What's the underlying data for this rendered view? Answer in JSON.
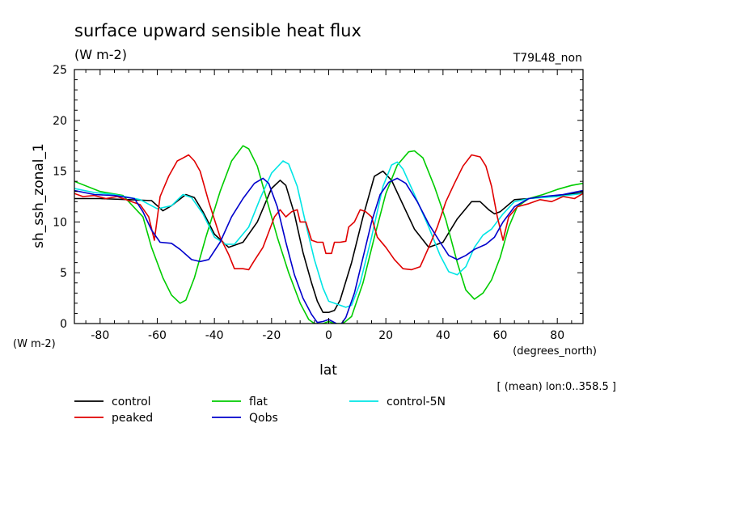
{
  "chart_data": {
    "type": "line",
    "title": "surface upward sensible heat flux",
    "subtitle": "(W m-2)",
    "run_label": "T79L48_non",
    "ylabel": "sh_ssh_zonal_1",
    "yunits": "(W m-2)",
    "xlabel": "lat",
    "xunits": "(degrees_north)",
    "annotation": "[ (mean) lon:0..358.5 ]",
    "xlim": [
      -89,
      89
    ],
    "ylim": [
      0,
      25
    ],
    "xticks": [
      -80,
      -60,
      -40,
      -20,
      0,
      20,
      40,
      60,
      80
    ],
    "yticks": [
      0,
      5,
      10,
      15,
      20,
      25
    ],
    "grid": false,
    "legend_position": "bottom",
    "series": [
      {
        "name": "control",
        "color": "#000000",
        "points": [
          [
            -89,
            12.3
          ],
          [
            -80,
            12.3
          ],
          [
            -70,
            12.2
          ],
          [
            -62,
            12.1
          ],
          [
            -58,
            11.1
          ],
          [
            -55,
            11.6
          ],
          [
            -50,
            12.7
          ],
          [
            -47,
            12.4
          ],
          [
            -44,
            11.0
          ],
          [
            -40,
            8.8
          ],
          [
            -35,
            7.5
          ],
          [
            -30,
            8.0
          ],
          [
            -25,
            10.0
          ],
          [
            -20,
            13.3
          ],
          [
            -17,
            14.1
          ],
          [
            -15,
            13.6
          ],
          [
            -12,
            10.8
          ],
          [
            -9,
            7.0
          ],
          [
            -6,
            4.0
          ],
          [
            -4,
            2.2
          ],
          [
            -2,
            1.1
          ],
          [
            0,
            1.1
          ],
          [
            2,
            1.3
          ],
          [
            4,
            2.3
          ],
          [
            8,
            6.0
          ],
          [
            12,
            10.5
          ],
          [
            16,
            14.5
          ],
          [
            19,
            15.0
          ],
          [
            22,
            14.1
          ],
          [
            25,
            12.3
          ],
          [
            30,
            9.3
          ],
          [
            35,
            7.5
          ],
          [
            40,
            8.0
          ],
          [
            45,
            10.3
          ],
          [
            50,
            12.0
          ],
          [
            53,
            12.0
          ],
          [
            56,
            11.2
          ],
          [
            58,
            10.8
          ],
          [
            60,
            11.0
          ],
          [
            65,
            12.2
          ],
          [
            70,
            12.3
          ],
          [
            80,
            12.6
          ],
          [
            89,
            12.9
          ]
        ]
      },
      {
        "name": "flat",
        "color": "#00cc00",
        "points": [
          [
            -89,
            14.0
          ],
          [
            -80,
            13.0
          ],
          [
            -72,
            12.6
          ],
          [
            -65,
            10.5
          ],
          [
            -62,
            7.5
          ],
          [
            -58,
            4.5
          ],
          [
            -55,
            2.8
          ],
          [
            -52,
            2.0
          ],
          [
            -50,
            2.3
          ],
          [
            -47,
            4.5
          ],
          [
            -43,
            8.5
          ],
          [
            -38,
            13.0
          ],
          [
            -34,
            16.0
          ],
          [
            -30,
            17.5
          ],
          [
            -28,
            17.2
          ],
          [
            -25,
            15.5
          ],
          [
            -22,
            12.5
          ],
          [
            -18,
            8.5
          ],
          [
            -14,
            5.0
          ],
          [
            -10,
            2.0
          ],
          [
            -7,
            0.4
          ],
          [
            -5,
            0
          ],
          [
            -2,
            0
          ],
          [
            0,
            0.2
          ],
          [
            2,
            0
          ],
          [
            5,
            0
          ],
          [
            8,
            0.7
          ],
          [
            12,
            4.0
          ],
          [
            16,
            8.5
          ],
          [
            20,
            12.8
          ],
          [
            24,
            15.6
          ],
          [
            28,
            16.9
          ],
          [
            30,
            17.0
          ],
          [
            33,
            16.3
          ],
          [
            37,
            13.5
          ],
          [
            41,
            10.2
          ],
          [
            45,
            6.0
          ],
          [
            48,
            3.3
          ],
          [
            51,
            2.4
          ],
          [
            54,
            3.0
          ],
          [
            57,
            4.3
          ],
          [
            60,
            6.5
          ],
          [
            63,
            9.5
          ],
          [
            66,
            11.5
          ],
          [
            70,
            12.3
          ],
          [
            75,
            12.7
          ],
          [
            80,
            13.2
          ],
          [
            85,
            13.6
          ],
          [
            89,
            13.8
          ]
        ]
      },
      {
        "name": "control-5N",
        "color": "#00e5e5",
        "points": [
          [
            -89,
            13.3
          ],
          [
            -82,
            12.9
          ],
          [
            -75,
            12.7
          ],
          [
            -66,
            12.2
          ],
          [
            -60,
            11.3
          ],
          [
            -55,
            11.6
          ],
          [
            -51,
            12.7
          ],
          [
            -48,
            12.4
          ],
          [
            -44,
            10.8
          ],
          [
            -40,
            8.5
          ],
          [
            -36,
            7.8
          ],
          [
            -33,
            7.8
          ],
          [
            -28,
            9.5
          ],
          [
            -24,
            12.3
          ],
          [
            -20,
            14.8
          ],
          [
            -16,
            16.0
          ],
          [
            -14,
            15.7
          ],
          [
            -11,
            13.5
          ],
          [
            -8,
            9.8
          ],
          [
            -5,
            6.3
          ],
          [
            -2,
            3.5
          ],
          [
            0,
            2.2
          ],
          [
            3,
            1.9
          ],
          [
            6,
            1.6
          ],
          [
            8,
            1.8
          ],
          [
            11,
            4.0
          ],
          [
            15,
            8.5
          ],
          [
            19,
            13.5
          ],
          [
            22,
            15.6
          ],
          [
            24,
            15.9
          ],
          [
            26,
            15.2
          ],
          [
            30,
            12.7
          ],
          [
            35,
            9.5
          ],
          [
            39,
            6.7
          ],
          [
            42,
            5.1
          ],
          [
            45,
            4.8
          ],
          [
            48,
            5.6
          ],
          [
            51,
            7.5
          ],
          [
            54,
            8.7
          ],
          [
            57,
            9.3
          ],
          [
            61,
            10.8
          ],
          [
            65,
            12.0
          ],
          [
            70,
            12.3
          ],
          [
            80,
            12.5
          ],
          [
            89,
            12.8
          ]
        ]
      },
      {
        "name": "peaked",
        "color": "#e00000",
        "points": [
          [
            -89,
            12.8
          ],
          [
            -86,
            12.5
          ],
          [
            -82,
            12.6
          ],
          [
            -78,
            12.3
          ],
          [
            -74,
            12.5
          ],
          [
            -70,
            12.1
          ],
          [
            -66,
            11.7
          ],
          [
            -63,
            10.5
          ],
          [
            -61,
            8.2
          ],
          [
            -59,
            12.5
          ],
          [
            -56,
            14.5
          ],
          [
            -53,
            16.0
          ],
          [
            -51,
            16.3
          ],
          [
            -49,
            16.6
          ],
          [
            -47,
            16.0
          ],
          [
            -45,
            15.0
          ],
          [
            -42,
            12.0
          ],
          [
            -38,
            8.5
          ],
          [
            -35,
            6.8
          ],
          [
            -33,
            5.4
          ],
          [
            -30,
            5.4
          ],
          [
            -28,
            5.3
          ],
          [
            -26,
            6.2
          ],
          [
            -23,
            7.5
          ],
          [
            -21,
            9.0
          ],
          [
            -19,
            10.5
          ],
          [
            -17,
            11.2
          ],
          [
            -15,
            10.5
          ],
          [
            -13,
            11.0
          ],
          [
            -11,
            11.2
          ],
          [
            -10,
            10.0
          ],
          [
            -8,
            10.0
          ],
          [
            -6,
            8.2
          ],
          [
            -4,
            8.0
          ],
          [
            -2,
            8.0
          ],
          [
            -1,
            6.9
          ],
          [
            1,
            6.9
          ],
          [
            2,
            8.0
          ],
          [
            4,
            8.0
          ],
          [
            6,
            8.1
          ],
          [
            7,
            9.5
          ],
          [
            9,
            10.0
          ],
          [
            11,
            11.2
          ],
          [
            13,
            11.0
          ],
          [
            15,
            10.5
          ],
          [
            17,
            8.5
          ],
          [
            20,
            7.5
          ],
          [
            23,
            6.3
          ],
          [
            26,
            5.4
          ],
          [
            29,
            5.3
          ],
          [
            32,
            5.6
          ],
          [
            35,
            7.5
          ],
          [
            38,
            9.5
          ],
          [
            41,
            12.0
          ],
          [
            44,
            13.8
          ],
          [
            47,
            15.5
          ],
          [
            50,
            16.6
          ],
          [
            53,
            16.4
          ],
          [
            55,
            15.5
          ],
          [
            57,
            13.5
          ],
          [
            59,
            10.5
          ],
          [
            61,
            8.2
          ],
          [
            63,
            10.5
          ],
          [
            66,
            11.5
          ],
          [
            70,
            11.8
          ],
          [
            74,
            12.2
          ],
          [
            78,
            12.0
          ],
          [
            82,
            12.5
          ],
          [
            86,
            12.3
          ],
          [
            89,
            12.8
          ]
        ]
      },
      {
        "name": "Qobs",
        "color": "#0000cc",
        "points": [
          [
            -89,
            13.1
          ],
          [
            -82,
            12.7
          ],
          [
            -75,
            12.6
          ],
          [
            -68,
            12.3
          ],
          [
            -65,
            11.0
          ],
          [
            -62,
            9.2
          ],
          [
            -59,
            8.0
          ],
          [
            -55,
            7.9
          ],
          [
            -52,
            7.3
          ],
          [
            -48,
            6.3
          ],
          [
            -45,
            6.1
          ],
          [
            -42,
            6.3
          ],
          [
            -38,
            8.0
          ],
          [
            -34,
            10.5
          ],
          [
            -30,
            12.3
          ],
          [
            -26,
            13.8
          ],
          [
            -23,
            14.3
          ],
          [
            -21,
            13.8
          ],
          [
            -18,
            11.5
          ],
          [
            -15,
            8.0
          ],
          [
            -12,
            4.8
          ],
          [
            -9,
            2.5
          ],
          [
            -6,
            0.9
          ],
          [
            -4,
            0.1
          ],
          [
            -2,
            0.2
          ],
          [
            0,
            0.4
          ],
          [
            2,
            0.1
          ],
          [
            4,
            -0.2
          ],
          [
            6,
            0.6
          ],
          [
            9,
            3.0
          ],
          [
            12,
            6.5
          ],
          [
            15,
            10.0
          ],
          [
            18,
            12.7
          ],
          [
            21,
            13.9
          ],
          [
            24,
            14.3
          ],
          [
            27,
            13.8
          ],
          [
            31,
            12.0
          ],
          [
            35,
            9.8
          ],
          [
            39,
            8.0
          ],
          [
            42,
            6.7
          ],
          [
            45,
            6.3
          ],
          [
            48,
            6.7
          ],
          [
            51,
            7.3
          ],
          [
            55,
            7.8
          ],
          [
            58,
            8.5
          ],
          [
            61,
            10.0
          ],
          [
            65,
            11.5
          ],
          [
            70,
            12.3
          ],
          [
            75,
            12.5
          ],
          [
            82,
            12.7
          ],
          [
            89,
            13.1
          ]
        ]
      }
    ]
  }
}
